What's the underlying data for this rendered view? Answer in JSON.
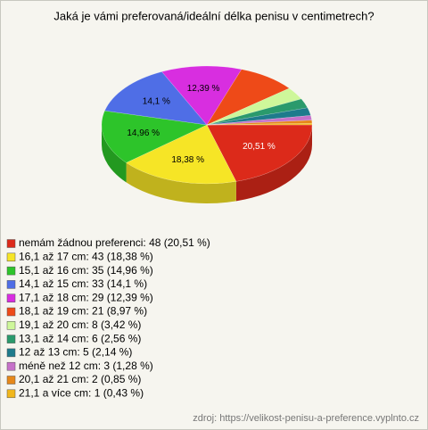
{
  "chart_data": {
    "type": "pie",
    "title": "Jaká je vámi preferovaná/ideální délka penisu v centimetrech?",
    "categories": [
      "nemám žádnou preferenci",
      "16,1 až 17 cm",
      "15,1 až 16 cm",
      "14,1 až 15 cm",
      "17,1 až 18 cm",
      "18,1 až 19 cm",
      "19,1 až 20 cm",
      "13,1 až 14 cm",
      "12 až 13 cm",
      "méně než 12 cm",
      "20,1 až 21 cm",
      "21,1 a více cm"
    ],
    "values": [
      20.51,
      18.38,
      14.96,
      14.1,
      12.39,
      8.97,
      3.42,
      2.56,
      2.14,
      1.28,
      0.85,
      0.43
    ],
    "value_labels": [
      "20,51 %",
      "18,38 %",
      "14,96 %",
      "14,1 %",
      "12,39 %",
      null,
      null,
      null,
      null,
      null,
      null,
      null
    ],
    "legend_labels": [
      "nemám žádnou preferenci: 48 (20,51 %)",
      "16,1 až 17 cm: 43 (18,38 %)",
      "15,1 až 16 cm: 35 (14,96 %)",
      "14,1 až 15 cm: 33 (14,1 %)",
      "17,1 až 18 cm: 29 (12,39 %)",
      "18,1 až 19 cm: 21 (8,97 %)",
      "19,1 až 20 cm: 8 (3,42 %)",
      "13,1 až 14 cm: 6 (2,56 %)",
      "12 až 13 cm: 5 (2,14 %)",
      "méně než 12 cm: 3 (1,28 %)",
      "20,1 až 21 cm: 2 (0,85 %)",
      "21,1 a více cm: 1 (0,43 %)"
    ],
    "colors": [
      "#dc2a1a",
      "#f6e526",
      "#2dc42a",
      "#4f6ee6",
      "#d82ee0",
      "#ee4a18",
      "#cef79a",
      "#2a9a6c",
      "#1e7b8c",
      "#c672c9",
      "#e6881a",
      "#f1b71c"
    ],
    "source": "zdroj: https://velikost-penisu-a-preference.vyplnto.cz"
  }
}
